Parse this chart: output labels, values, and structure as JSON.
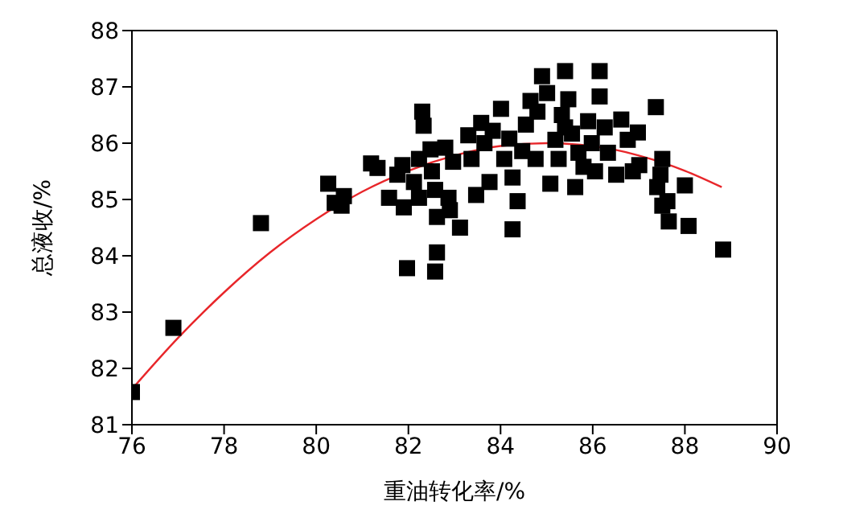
{
  "chart_data": {
    "type": "scatter",
    "xlabel": "重油转化率/%",
    "ylabel": "总液收/%",
    "xlim": [
      76,
      90
    ],
    "xticks": [
      76,
      78,
      80,
      82,
      84,
      86,
      88,
      90
    ],
    "ylim": [
      81,
      88
    ],
    "yticks": [
      81,
      82,
      83,
      84,
      85,
      86,
      87,
      88
    ],
    "grid": false,
    "legend": false,
    "marker": "square",
    "series": [
      {
        "color": "#000000",
        "x": [
          76.0,
          76.9,
          78.8,
          80.26,
          80.4,
          80.55,
          80.6,
          81.19,
          81.33,
          81.58,
          81.76,
          81.97,
          81.87,
          81.9,
          82.12,
          82.23,
          82.23,
          82.3,
          82.33,
          82.48,
          82.51,
          82.62,
          82.62,
          82.58,
          82.58,
          82.8,
          82.87,
          82.9,
          82.97,
          83.12,
          83.3,
          83.37,
          83.47,
          83.58,
          83.65,
          83.76,
          83.83,
          84.01,
          84.08,
          84.19,
          84.26,
          84.26,
          84.37,
          84.47,
          84.55,
          84.65,
          84.76,
          84.8,
          84.9,
          85.01,
          85.08,
          85.19,
          85.26,
          85.33,
          85.4,
          85.4,
          85.47,
          85.55,
          85.62,
          85.69,
          85.8,
          85.9,
          85.98,
          86.05,
          86.15,
          86.15,
          86.26,
          86.33,
          86.51,
          86.62,
          86.76,
          86.98,
          86.87,
          87.01,
          87.4,
          87.37,
          87.51,
          87.47,
          87.51,
          87.62,
          87.65,
          88.0,
          88.08,
          88.83
        ],
        "values": [
          81.58,
          82.72,
          84.58,
          85.28,
          84.94,
          84.89,
          85.06,
          85.64,
          85.56,
          85.03,
          85.44,
          83.78,
          85.61,
          84.86,
          85.31,
          85.03,
          85.72,
          86.56,
          86.31,
          85.89,
          85.5,
          84.69,
          84.06,
          83.72,
          85.17,
          85.92,
          85.03,
          84.81,
          85.67,
          84.5,
          86.14,
          85.72,
          85.08,
          86.36,
          86.0,
          85.31,
          86.22,
          86.61,
          85.72,
          86.08,
          84.47,
          85.39,
          84.97,
          85.86,
          86.33,
          86.75,
          85.72,
          86.56,
          87.19,
          86.89,
          85.28,
          86.06,
          85.72,
          86.5,
          87.28,
          86.28,
          86.78,
          86.17,
          85.22,
          85.83,
          85.58,
          86.39,
          86.0,
          85.5,
          87.28,
          86.83,
          86.28,
          85.83,
          85.44,
          86.42,
          86.06,
          86.19,
          85.5,
          85.61,
          85.22,
          86.64,
          85.72,
          85.44,
          84.89,
          84.97,
          84.61,
          85.25,
          84.53,
          84.11
        ]
      },
      {
        "type": "line",
        "color": "#e8262a",
        "marker": "none",
        "line_style": "solid",
        "x": [
          76,
          77,
          78,
          79,
          80,
          81,
          82,
          83,
          84,
          85,
          86.5,
          87,
          88,
          88.8
        ],
        "values": [
          81.63,
          82.54,
          83.35,
          84.06,
          84.65,
          85.14,
          85.51,
          85.78,
          85.95,
          86.0,
          85.88,
          85.78,
          85.51,
          85.22
        ]
      }
    ]
  }
}
